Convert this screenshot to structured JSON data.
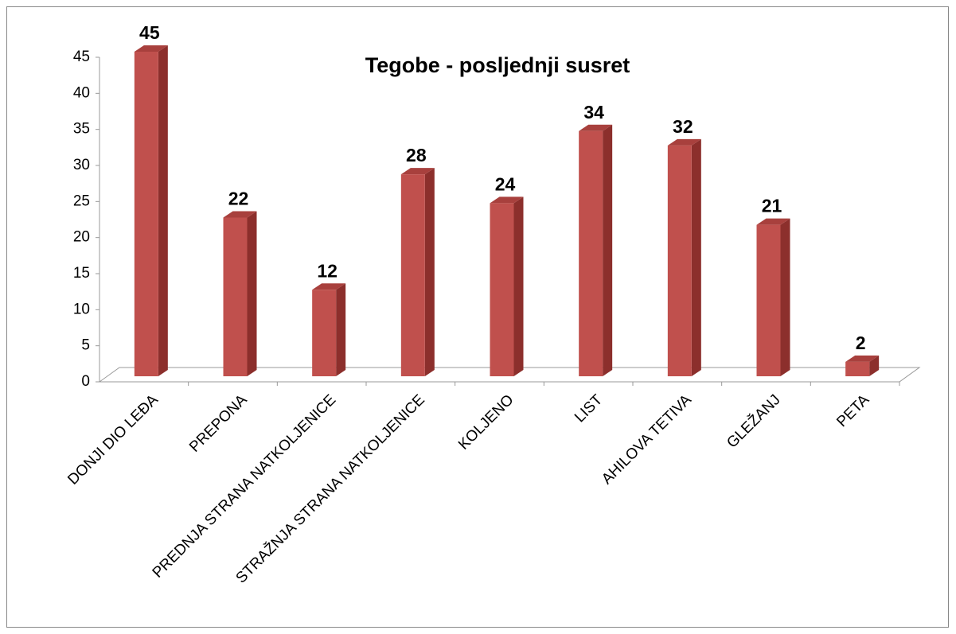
{
  "chart_data": {
    "type": "bar3d",
    "title": "Tegobe - posljednji susret",
    "categories": [
      "DONJI DIO LEĐA",
      "PREPONA",
      "PREDNJA STRANA NATKOLJENICE",
      "STRAŽNJA STRANA NATKOLJENICE",
      "KOLJENO",
      "LIST",
      "AHILOVA TETIVA",
      "GLEŽANJ",
      "PETA"
    ],
    "values": [
      45,
      22,
      12,
      28,
      24,
      34,
      32,
      21,
      2
    ],
    "color": "#c0504d",
    "ylim": [
      0,
      45
    ],
    "yticks": [
      0,
      5,
      10,
      15,
      20,
      25,
      30,
      35,
      40,
      45
    ],
    "grid": false
  }
}
